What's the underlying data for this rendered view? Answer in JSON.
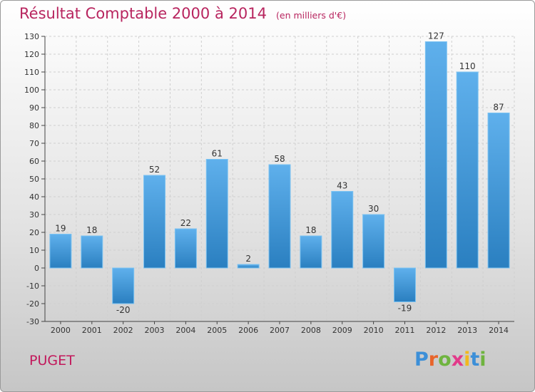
{
  "title": "Résultat Comptable 2000 à 2014",
  "subtitle": "(en milliers d'€)",
  "commune": "PUGET",
  "brand": "Proxiti",
  "colors": {
    "title": "#b8255f",
    "bar_light": "#5fb0ec",
    "bar_dark": "#2a7fc0",
    "axis": "#444444",
    "grid": "#cfcfcf"
  },
  "chart_data": {
    "type": "bar",
    "title": "Résultat Comptable 2000 à 2014",
    "ylabel": "(en milliers d'€)",
    "xlabel": "",
    "categories": [
      "2000",
      "2001",
      "2002",
      "2003",
      "2004",
      "2005",
      "2006",
      "2007",
      "2008",
      "2009",
      "2010",
      "2011",
      "2012",
      "2013",
      "2014"
    ],
    "values": [
      19,
      18,
      -20,
      52,
      22,
      61,
      2,
      58,
      18,
      43,
      30,
      -19,
      127,
      110,
      87
    ],
    "ylim": [
      -30,
      130
    ],
    "yticks": [
      -30,
      -20,
      -10,
      0,
      10,
      20,
      30,
      40,
      50,
      60,
      70,
      80,
      90,
      100,
      110,
      120,
      130
    ],
    "grid": true,
    "legend": "none"
  }
}
